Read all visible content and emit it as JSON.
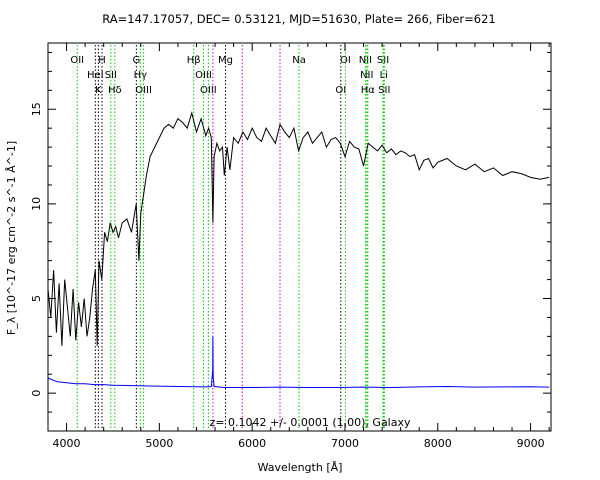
{
  "chart_data": {
    "type": "line",
    "title": "RA=147.17057, DEC= 0.53121, MJD=51630, Plate= 266, Fiber=621",
    "xlabel": "Wavelength [Å]",
    "ylabel": "F_λ [10^-17 erg cm^-2 s^-1 Å^-1]",
    "xlim": [
      3800,
      9220
    ],
    "ylim": [
      -2.0,
      18.5
    ],
    "xticks": [
      "4000",
      "5000",
      "6000",
      "7000",
      "8000",
      "9000"
    ],
    "yticks": [
      "0",
      "5",
      "10",
      "15"
    ],
    "annotation": "z= 0.1042 +/- 0.0001 (1.00), Galaxy",
    "colors": {
      "flux": "#000000",
      "error": "#0000ff",
      "emission": "#00cc00",
      "absorption": "#000000",
      "sky": "#cc00cc"
    },
    "series": [
      {
        "role": "flux",
        "x": [
          3800,
          3830,
          3860,
          3890,
          3920,
          3950,
          3980,
          4010,
          4040,
          4070,
          4100,
          4130,
          4160,
          4190,
          4220,
          4250,
          4280,
          4310,
          4330,
          4350,
          4380,
          4410,
          4440,
          4470,
          4500,
          4530,
          4560,
          4600,
          4650,
          4700,
          4750,
          4780,
          4800,
          4830,
          4860,
          4900,
          4950,
          5000,
          5050,
          5100,
          5150,
          5200,
          5250,
          5300,
          5350,
          5400,
          5450,
          5500,
          5530,
          5560,
          5577,
          5590,
          5620,
          5650,
          5680,
          5700,
          5730,
          5760,
          5800,
          5850,
          5900,
          5950,
          6000,
          6050,
          6100,
          6150,
          6200,
          6250,
          6300,
          6350,
          6400,
          6450,
          6500,
          6550,
          6600,
          6650,
          6700,
          6750,
          6800,
          6850,
          6900,
          6950,
          7000,
          7050,
          7100,
          7150,
          7200,
          7250,
          7300,
          7350,
          7400,
          7450,
          7500,
          7550,
          7600,
          7650,
          7700,
          7750,
          7800,
          7850,
          7900,
          7950,
          8000,
          8100,
          8200,
          8300,
          8400,
          8500,
          8600,
          8700,
          8800,
          8900,
          9000,
          9100,
          9200
        ],
        "y": [
          5.5,
          4.0,
          6.5,
          3.2,
          5.8,
          2.5,
          6.0,
          4.5,
          3.0,
          5.5,
          2.8,
          4.8,
          3.5,
          5.0,
          3.0,
          4.0,
          5.5,
          6.5,
          2.5,
          7.0,
          6.0,
          8.5,
          8.0,
          9.0,
          8.5,
          8.8,
          8.2,
          9.0,
          9.2,
          8.5,
          10.0,
          7.0,
          9.5,
          10.5,
          11.5,
          12.5,
          13.0,
          13.5,
          14.0,
          14.2,
          14.0,
          14.5,
          14.3,
          14.0,
          14.8,
          13.8,
          14.5,
          13.6,
          14.0,
          13.5,
          9.0,
          12.5,
          13.2,
          12.8,
          13.0,
          11.5,
          13.0,
          11.8,
          13.5,
          13.2,
          13.8,
          13.4,
          14.0,
          13.5,
          13.3,
          14.0,
          13.6,
          13.2,
          14.2,
          13.8,
          13.5,
          14.0,
          12.8,
          13.5,
          13.8,
          13.2,
          13.5,
          13.8,
          13.0,
          13.4,
          13.5,
          13.2,
          12.5,
          13.3,
          13.0,
          12.9,
          12.0,
          13.2,
          13.0,
          12.8,
          13.1,
          12.7,
          12.9,
          12.6,
          12.8,
          12.7,
          12.5,
          12.6,
          11.8,
          12.3,
          12.4,
          11.9,
          12.2,
          12.4,
          12.0,
          11.8,
          12.1,
          11.7,
          11.9,
          11.5,
          11.7,
          11.6,
          11.4,
          11.3,
          11.4
        ]
      },
      {
        "role": "error",
        "x": [
          3800,
          3900,
          4000,
          4100,
          4200,
          4300,
          4400,
          4500,
          4700,
          4900,
          5200,
          5500,
          5560,
          5575,
          5577,
          5580,
          5590,
          5700,
          6000,
          6300,
          6600,
          6900,
          7200,
          7500,
          7800,
          8100,
          8400,
          8700,
          9000,
          9200
        ],
        "y": [
          0.8,
          0.6,
          0.55,
          0.5,
          0.5,
          0.45,
          0.45,
          0.42,
          0.4,
          0.38,
          0.35,
          0.33,
          0.35,
          1.2,
          3.0,
          0.9,
          0.35,
          0.3,
          0.3,
          0.32,
          0.3,
          0.3,
          0.32,
          0.3,
          0.33,
          0.35,
          0.32,
          0.33,
          0.34,
          0.32
        ]
      }
    ],
    "lines": [
      {
        "wavelength": 4115,
        "type": "emission",
        "label": "OII",
        "row": 1
      },
      {
        "wavelength": 4310,
        "type": "absorption",
        "label": "HeI",
        "row": 2
      },
      {
        "wavelength": 4343,
        "type": "absorption",
        "label": "K",
        "row": 3
      },
      {
        "wavelength": 4382,
        "type": "absorption",
        "label": "H",
        "row": 1
      },
      {
        "wavelength": 4477,
        "type": "emission",
        "label": "SII",
        "row": 2
      },
      {
        "wavelength": 4520,
        "type": "emission",
        "label": "Hδ",
        "row": 3
      },
      {
        "wavelength": 4752,
        "type": "absorption",
        "label": "G",
        "row": 1
      },
      {
        "wavelength": 4795,
        "type": "emission",
        "label": "Hγ",
        "row": 2
      },
      {
        "wavelength": 4830,
        "type": "emission",
        "label": "OIII",
        "row": 3
      },
      {
        "wavelength": 5370,
        "type": "emission",
        "label": "Hβ",
        "row": 1
      },
      {
        "wavelength": 5475,
        "type": "emission",
        "label": "OIII",
        "row": 2
      },
      {
        "wavelength": 5528,
        "type": "emission",
        "label": "OIII",
        "row": 3
      },
      {
        "wavelength": 5577,
        "type": "sky",
        "label": "",
        "row": 0
      },
      {
        "wavelength": 5713,
        "type": "absorption",
        "label": "Mg",
        "row": 1
      },
      {
        "wavelength": 5893,
        "type": "sky",
        "label": "",
        "row": 0
      },
      {
        "wavelength": 6300,
        "type": "sky",
        "label": "",
        "row": 0
      },
      {
        "wavelength": 6505,
        "type": "emission",
        "label": "Na",
        "row": 1
      },
      {
        "wavelength": 6955,
        "type": "absorption",
        "label": "OI",
        "row": 3
      },
      {
        "wavelength": 7005,
        "type": "emission",
        "label": "OI",
        "row": 1
      },
      {
        "wavelength": 7220,
        "type": "emission",
        "label": "NII",
        "row": 1
      },
      {
        "wavelength": 7235,
        "type": "emission",
        "label": "NII",
        "row": 2
      },
      {
        "wavelength": 7246,
        "type": "emission",
        "label": "Hα",
        "row": 3
      },
      {
        "wavelength": 7410,
        "type": "emission",
        "label": "SII",
        "row": 1
      },
      {
        "wavelength": 7418,
        "type": "emission",
        "label": "Li",
        "row": 2
      },
      {
        "wavelength": 7424,
        "type": "emission",
        "label": "SII",
        "row": 3
      }
    ]
  }
}
